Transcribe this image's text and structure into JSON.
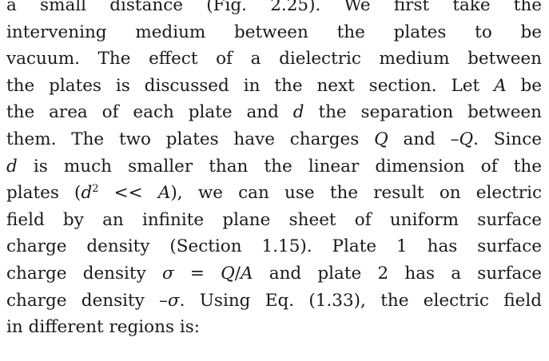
{
  "paragraph": {
    "lines": [
      [
        "a small distance (Fig. 2.25). We first take the"
      ],
      [
        "intervening medium between the plates to be"
      ],
      [
        "vacuum. The effect of a dielectric medium between"
      ],
      [
        "the plates is discussed in the next section. Let ",
        {
          "i": "A"
        },
        " be"
      ],
      [
        "the area of each plate and ",
        {
          "i": "d"
        },
        " the separation between"
      ],
      [
        "them. The two plates have charges ",
        {
          "i": "Q"
        },
        " and –",
        {
          "i": "Q"
        },
        ". Since"
      ],
      [
        {
          "i": "d"
        },
        " is much smaller than the linear dimension of the"
      ],
      [
        "plates (",
        {
          "i": "d"
        },
        {
          "sup": "2"
        },
        " << ",
        {
          "i": "A"
        },
        "), we can use the result on electric"
      ],
      [
        "field by an infinite plane sheet of uniform surface"
      ],
      [
        "charge density (Section 1.15). Plate 1 has surface"
      ],
      [
        "charge density ",
        {
          "i": "σ"
        },
        " = ",
        {
          "i": "Q"
        },
        "/",
        {
          "i": "A"
        },
        " and plate 2 has a surface"
      ],
      [
        "charge density –",
        {
          "i": "σ"
        },
        ". Using Eq. (1.33), the electric field"
      ],
      [
        "in different regions is:"
      ]
    ]
  }
}
